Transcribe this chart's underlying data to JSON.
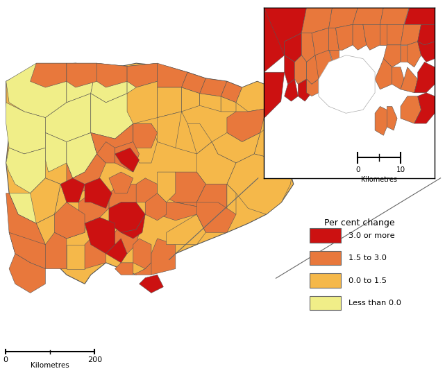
{
  "legend_title": "Per cent change",
  "legend_items": [
    {
      "label": "3.0 or more",
      "color": "#cc1111"
    },
    {
      "label": "1.5 to 3.0",
      "color": "#e8783c"
    },
    {
      "label": "0.0 to 1.5",
      "color": "#f5b84a"
    },
    {
      "label": "Less than 0.0",
      "color": "#f0ee88"
    }
  ],
  "background_color": "#ffffff",
  "border_color": "#555555",
  "border_lw": 0.4,
  "map_bg": "#f5b84a",
  "inset_bg": "#e8783c"
}
